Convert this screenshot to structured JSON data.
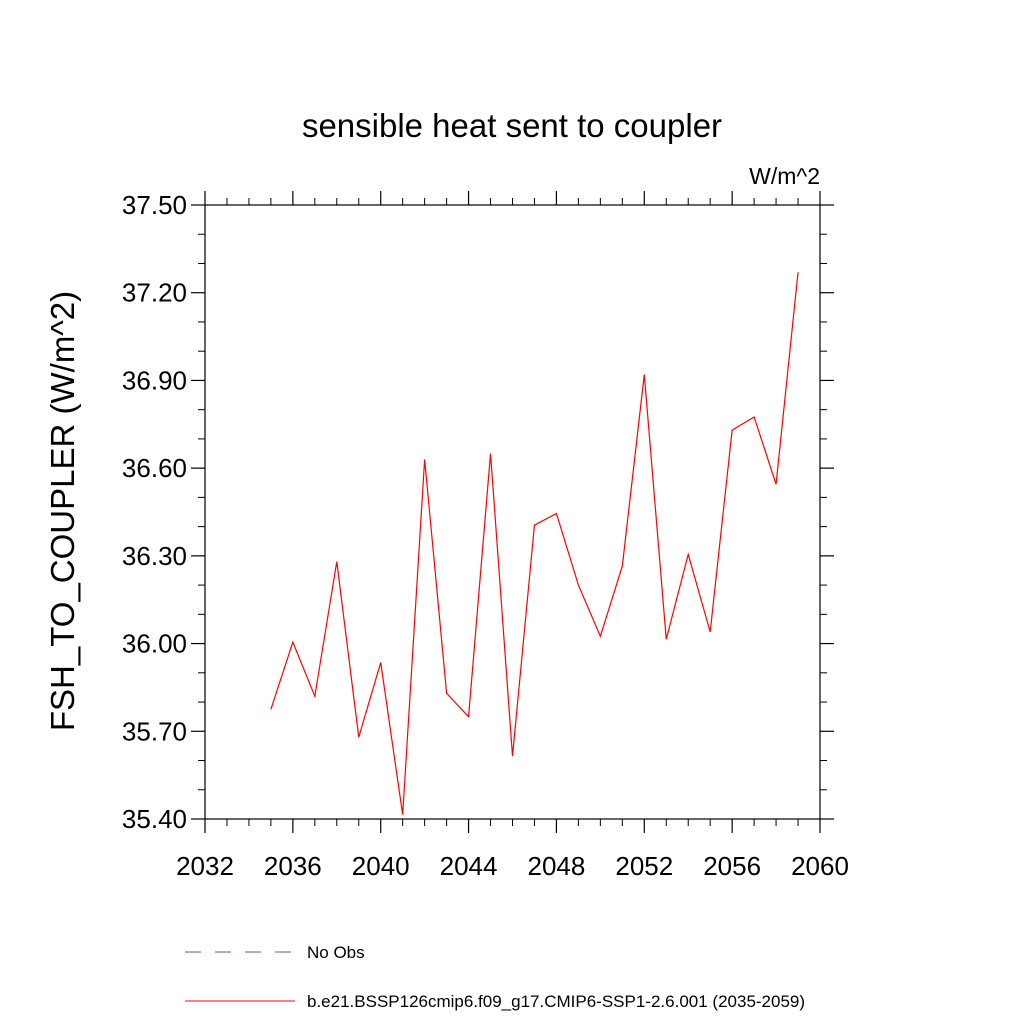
{
  "chart_data": {
    "type": "line",
    "title": "sensible heat sent to coupler",
    "units_label": "W/m^2",
    "xlabel": "",
    "ylabel": "FSH_TO_COUPLER  (W/m^2)",
    "xlim": [
      2032,
      2060
    ],
    "ylim": [
      35.4,
      37.5
    ],
    "x_ticks": [
      "2032",
      "2036",
      "2040",
      "2044",
      "2048",
      "2052",
      "2056",
      "2060"
    ],
    "y_ticks": [
      "35.40",
      "35.70",
      "36.00",
      "36.30",
      "36.60",
      "36.90",
      "37.20",
      "37.50"
    ],
    "grid": false,
    "legend_position": "bottom",
    "series": [
      {
        "name": "b.e21.BSSP126cmip6.f09_g17.CMIP6-SSP1-2.6.001 (2035-2059)",
        "color": "#ff0000",
        "style": "solid",
        "x": [
          2035,
          2036,
          2037,
          2038,
          2039,
          2040,
          2041,
          2042,
          2043,
          2044,
          2045,
          2046,
          2047,
          2048,
          2049,
          2050,
          2051,
          2052,
          2053,
          2054,
          2055,
          2056,
          2057,
          2058,
          2059
        ],
        "y": [
          35.775,
          36.005,
          35.82,
          36.28,
          35.68,
          35.935,
          35.415,
          36.63,
          35.83,
          35.75,
          36.65,
          35.615,
          36.405,
          36.445,
          36.2,
          36.025,
          36.265,
          36.92,
          36.015,
          36.305,
          36.04,
          36.73,
          36.775,
          36.545,
          37.27
        ]
      }
    ],
    "legend": [
      {
        "label": "No Obs",
        "color": "#5a55c8",
        "style": "dashed"
      },
      {
        "label": "b.e21.BSSP126cmip6.f09_g17.CMIP6-SSP1-2.6.001 (2035-2059)",
        "color": "#ff0000",
        "style": "solid"
      }
    ]
  }
}
